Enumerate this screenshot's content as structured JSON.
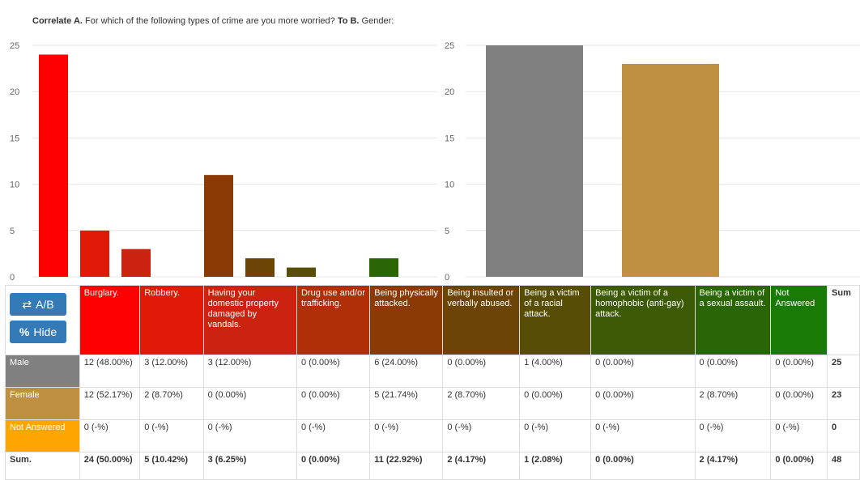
{
  "title": {
    "correlate_label": "Correlate A.",
    "question_a": " For which of the following types of crime are you more worried? ",
    "to_label": "To B.",
    "question_b": " Gender:"
  },
  "controls": {
    "ab_label": "A/B",
    "ab_icon": "swap-icon",
    "hide_label": "Hide",
    "hide_icon": "percent-icon"
  },
  "chart_data": [
    {
      "type": "bar",
      "categories": [
        "Burglary.",
        "Robbery.",
        "Having your domestic property damaged by vandals.",
        "Drug use and/or trafficking.",
        "Being physically attacked.",
        "Being insulted or verbally abused.",
        "Being a victim of a racial attack.",
        "Being a victim of a homophobic (anti-gay) attack.",
        "Being a victim of a sexual assault.",
        "Not Answered"
      ],
      "values": [
        24,
        5,
        3,
        0,
        11,
        2,
        1,
        0,
        2,
        0
      ],
      "colors": [
        "#ff0000",
        "#e01a06",
        "#cc2210",
        "#b02e08",
        "#8b3a06",
        "#6b4406",
        "#574d06",
        "#3d5a06",
        "#2a6606",
        "#1a7a06"
      ],
      "ylim": [
        0,
        25
      ],
      "yticks": [
        0,
        5,
        10,
        15,
        20,
        25
      ],
      "grid": true
    },
    {
      "type": "bar",
      "categories": [
        "Male",
        "Female",
        "Not Answered"
      ],
      "values": [
        25,
        23,
        0
      ],
      "colors": [
        "#808080",
        "#bf9040",
        "#ffa500"
      ],
      "ylim": [
        0,
        25
      ],
      "yticks": [
        0,
        5,
        10,
        15,
        20,
        25
      ],
      "grid": true
    }
  ],
  "table": {
    "columns": [
      {
        "label": "Burglary.",
        "color": "#ff0000"
      },
      {
        "label": "Robbery.",
        "color": "#e01a06"
      },
      {
        "label": "Having your domestic property damaged by vandals.",
        "color": "#cc2210"
      },
      {
        "label": "Drug use and/or trafficking.",
        "color": "#b02e08"
      },
      {
        "label": "Being physically attacked.",
        "color": "#8b3a06"
      },
      {
        "label": "Being insulted or verbally abused.",
        "color": "#6b4406"
      },
      {
        "label": "Being a victim of a racial attack.",
        "color": "#574d06"
      },
      {
        "label": "Being a victim of a homophobic (anti-gay) attack.",
        "color": "#3d5a06"
      },
      {
        "label": "Being a victim of a sexual assault.",
        "color": "#2a6606"
      },
      {
        "label": "Not Answered",
        "color": "#1a7a06"
      },
      {
        "label": "Sum",
        "color": "#ffffff"
      }
    ],
    "rows": [
      {
        "label": "Male",
        "color": "#808080",
        "cells": [
          "12 (48.00%)",
          "3 (12.00%)",
          "3 (12.00%)",
          "0 (0.00%)",
          "6 (24.00%)",
          "0 (0.00%)",
          "1 (4.00%)",
          "0 (0.00%)",
          "0 (0.00%)",
          "0 (0.00%)",
          "25"
        ]
      },
      {
        "label": "Female",
        "color": "#bf9040",
        "cells": [
          "12 (52.17%)",
          "2 (8.70%)",
          "0 (0.00%)",
          "0 (0.00%)",
          "5 (21.74%)",
          "2 (8.70%)",
          "0 (0.00%)",
          "0 (0.00%)",
          "2 (8.70%)",
          "0 (0.00%)",
          "23"
        ]
      },
      {
        "label": "Not Answered",
        "color": "#ffa500",
        "cells": [
          "0 (-%)",
          "0 (-%)",
          "0 (-%)",
          "0 (-%)",
          "0 (-%)",
          "0 (-%)",
          "0 (-%)",
          "0 (-%)",
          "0 (-%)",
          "0 (-%)",
          "0"
        ]
      }
    ],
    "sum_row": {
      "label": "Sum.",
      "cells": [
        "24 (50.00%)",
        "5 (10.42%)",
        "3 (6.25%)",
        "0 (0.00%)",
        "11 (22.92%)",
        "2 (4.17%)",
        "1 (2.08%)",
        "0 (0.00%)",
        "2 (4.17%)",
        "0 (0.00%)",
        "48"
      ]
    }
  }
}
